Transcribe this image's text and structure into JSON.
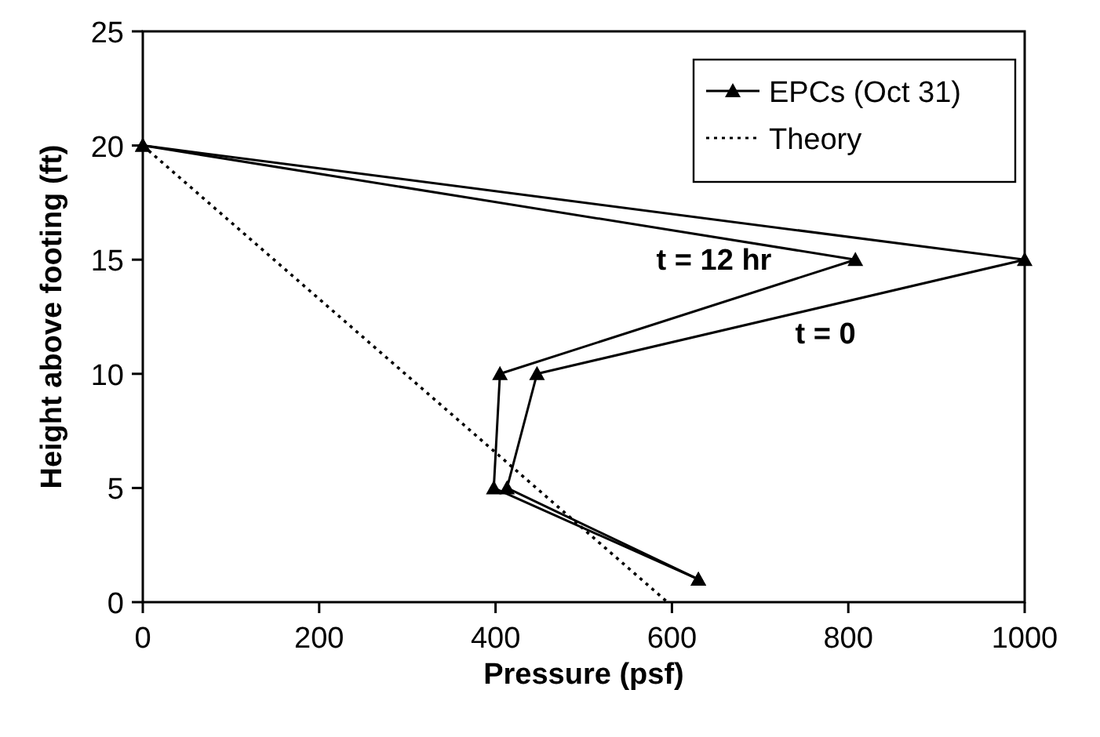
{
  "chart_data": {
    "type": "line",
    "xlabel": "Pressure (psf)",
    "ylabel": "Height above footing (ft)",
    "xlim": [
      0,
      1000
    ],
    "xticks": [
      0,
      200,
      400,
      600,
      800,
      1000
    ],
    "ylim": [
      0,
      25
    ],
    "yticks": [
      0,
      5,
      10,
      15,
      20,
      25
    ],
    "legend": "top right",
    "grid": false,
    "series": [
      {
        "name": "EPCs (Oct 31)",
        "color": "#000000",
        "marker": "triangle",
        "line_style": "solid",
        "x": [
          0,
          1000,
          447,
          413,
          630
        ],
        "values": [
          20,
          15,
          10,
          5,
          1
        ]
      },
      {
        "color": "#000000",
        "marker": "triangle",
        "line_style": "solid",
        "x": [
          0,
          808,
          405,
          398,
          630
        ],
        "values": [
          20,
          15,
          10,
          5,
          1
        ]
      },
      {
        "name": "Theory",
        "color": "#000000",
        "marker": "none",
        "line_style": "dotted",
        "x": [
          0,
          595
        ],
        "values": [
          20,
          0
        ]
      }
    ],
    "annotations": [
      "t = 12 hr",
      "t = 0"
    ]
  }
}
